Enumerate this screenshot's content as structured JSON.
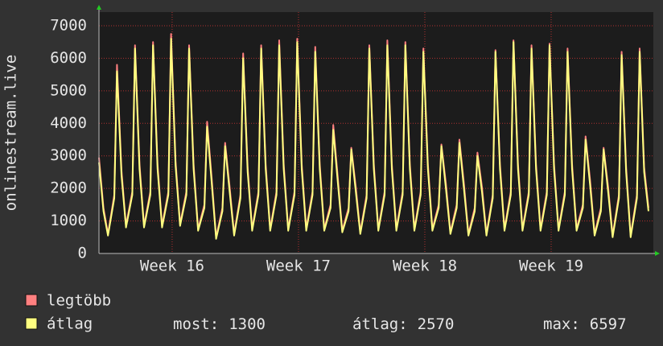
{
  "chart_data": {
    "type": "line",
    "y_label": "onlinestream.live",
    "x": [
      0,
      0.25,
      0.5,
      0.85,
      1,
      1.25,
      1.5,
      1.85,
      2,
      2.25,
      2.5,
      2.85,
      3,
      3.25,
      3.5,
      3.85,
      4,
      4.25,
      4.5,
      4.85,
      5,
      5.25,
      5.5,
      5.85,
      6,
      6.25,
      6.5,
      6.85,
      7,
      7.25,
      7.5,
      7.85,
      8,
      8.25,
      8.5,
      8.85,
      9,
      9.25,
      9.5,
      9.85,
      10,
      10.25,
      10.5,
      10.85,
      11,
      11.25,
      11.5,
      11.85,
      12,
      12.25,
      12.5,
      12.85,
      13,
      13.25,
      13.5,
      13.85,
      14,
      14.25,
      14.5,
      14.85,
      15,
      15.25,
      15.5,
      15.85,
      16,
      16.25,
      16.5,
      16.85,
      17,
      17.25,
      17.5,
      17.85,
      18,
      18.25,
      18.5,
      18.85,
      19,
      19.25,
      19.5,
      19.85,
      20,
      20.25,
      20.5,
      20.85,
      21,
      21.25,
      21.5,
      21.85,
      22,
      22.25,
      22.5,
      22.85,
      23,
      23.25,
      23.5,
      23.85,
      24,
      24.25,
      24.5,
      24.85,
      25,
      25.25,
      25.5,
      25.85,
      26,
      26.25,
      26.5,
      26.85,
      27,
      27.25,
      27.5,
      27.85,
      28,
      28.25,
      28.5,
      28.85,
      29,
      29.25,
      29.5,
      29.85,
      30,
      30.25,
      30.49
    ],
    "series": [
      {
        "name": "legtöbb",
        "color": "#ff8080",
        "values": [
          2950,
          1400,
          600,
          1800,
          5800,
          2550,
          850,
          1900,
          6400,
          2750,
          850,
          1900,
          6500,
          2750,
          850,
          1900,
          6750,
          2850,
          900,
          1900,
          6400,
          2750,
          750,
          1500,
          4050,
          2350,
          500,
          1400,
          3400,
          2050,
          600,
          1800,
          6150,
          2650,
          750,
          1900,
          6400,
          2750,
          750,
          1900,
          6550,
          2750,
          750,
          1900,
          6600,
          2750,
          750,
          1900,
          6350,
          2750,
          750,
          1500,
          3950,
          2350,
          700,
          1400,
          3250,
          2050,
          650,
          1800,
          6400,
          2750,
          750,
          1900,
          6550,
          2750,
          750,
          1900,
          6500,
          2750,
          750,
          1900,
          6300,
          2750,
          750,
          1500,
          3350,
          2150,
          650,
          1500,
          3500,
          2150,
          600,
          1400,
          3100,
          2050,
          600,
          1800,
          6250,
          2750,
          750,
          1900,
          6550,
          2750,
          750,
          1900,
          6400,
          2750,
          750,
          1900,
          6450,
          2750,
          750,
          1900,
          6300,
          2750,
          750,
          1500,
          3600,
          2250,
          600,
          1400,
          3250,
          2050,
          550,
          1800,
          6200,
          2650,
          550,
          1800,
          6300,
          2650,
          1400
        ]
      },
      {
        "name": "átlag",
        "color": "#ffff80",
        "values": [
          2800,
          1300,
          550,
          1700,
          5600,
          2400,
          800,
          1800,
          6300,
          2600,
          800,
          1800,
          6400,
          2600,
          800,
          1800,
          6600,
          2700,
          850,
          1800,
          6300,
          2600,
          700,
          1400,
          3900,
          2200,
          450,
          1300,
          3300,
          1900,
          550,
          1700,
          6000,
          2500,
          700,
          1800,
          6300,
          2600,
          700,
          1800,
          6400,
          2600,
          700,
          1800,
          6500,
          2600,
          700,
          1800,
          6200,
          2600,
          700,
          1400,
          3800,
          2200,
          650,
          1300,
          3200,
          1900,
          600,
          1700,
          6300,
          2600,
          700,
          1800,
          6400,
          2600,
          700,
          1800,
          6400,
          2600,
          700,
          1800,
          6200,
          2600,
          700,
          1400,
          3300,
          2000,
          600,
          1400,
          3400,
          2000,
          550,
          1300,
          3000,
          1900,
          550,
          1700,
          6200,
          2600,
          700,
          1800,
          6500,
          2600,
          700,
          1800,
          6300,
          2600,
          700,
          1800,
          6400,
          2600,
          700,
          1800,
          6200,
          2600,
          700,
          1400,
          3500,
          2100,
          550,
          1300,
          3200,
          1900,
          500,
          1700,
          6100,
          2500,
          500,
          1700,
          6200,
          2500,
          1300
        ]
      }
    ],
    "xlim": [
      0,
      30.76
    ],
    "xticks": [
      {
        "value": 4.06,
        "label": "Week 16"
      },
      {
        "value": 11.07,
        "label": "Week 17"
      },
      {
        "value": 18.08,
        "label": "Week 18"
      },
      {
        "value": 25.09,
        "label": "Week 19"
      }
    ],
    "ylim": [
      0,
      7420
    ],
    "yticks": [
      0,
      1000,
      2000,
      3000,
      4000,
      5000,
      6000,
      7000
    ],
    "grid": true,
    "grid_color": "#b03030",
    "legend_stats": [
      {
        "label": "most:",
        "value": 1300
      },
      {
        "label": "átlag:",
        "value": 2570
      },
      {
        "label": "max:",
        "value": 6597
      }
    ]
  }
}
